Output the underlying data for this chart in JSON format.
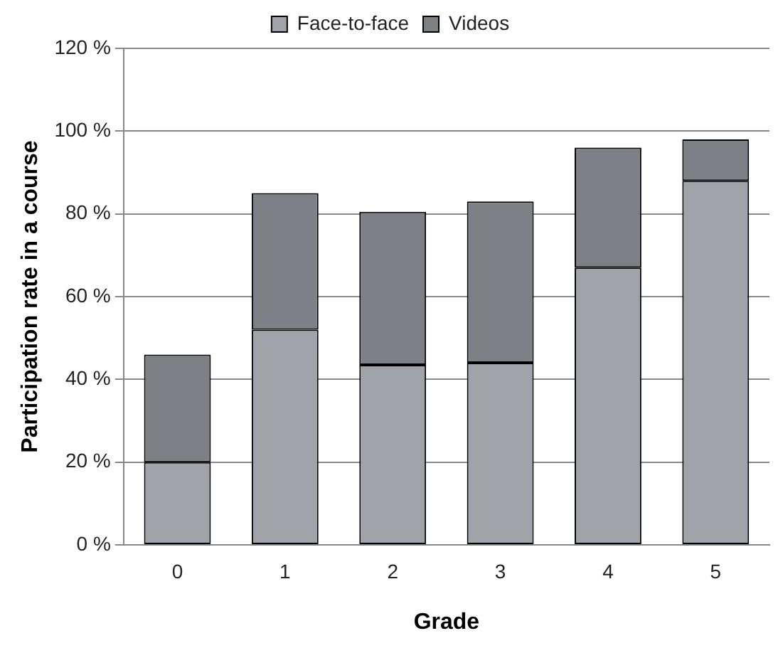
{
  "chart_data": {
    "type": "bar",
    "stacked": true,
    "xlabel": "Grade",
    "ylabel": "Participation rate in a course",
    "categories": [
      "0",
      "1",
      "2",
      "3",
      "4",
      "5"
    ],
    "series": [
      {
        "name": "Face-to-face",
        "color": "#a0a3a8",
        "values": [
          20,
          52,
          43.5,
          44,
          67,
          88
        ]
      },
      {
        "name": "Videos",
        "color": "#7f8085",
        "values": [
          26,
          33,
          37,
          39,
          29,
          10
        ]
      }
    ],
    "ylim": [
      0,
      120
    ],
    "yticks": [
      {
        "value": 0,
        "label": "0 %"
      },
      {
        "value": 20,
        "label": "20 %"
      },
      {
        "value": 40,
        "label": "40 %"
      },
      {
        "value": 60,
        "label": "60 %"
      },
      {
        "value": 80,
        "label": "80 %"
      },
      {
        "value": 100,
        "label": "100 %"
      },
      {
        "value": 120,
        "label": "120 %"
      }
    ],
    "grid": "y",
    "legend": "top"
  }
}
